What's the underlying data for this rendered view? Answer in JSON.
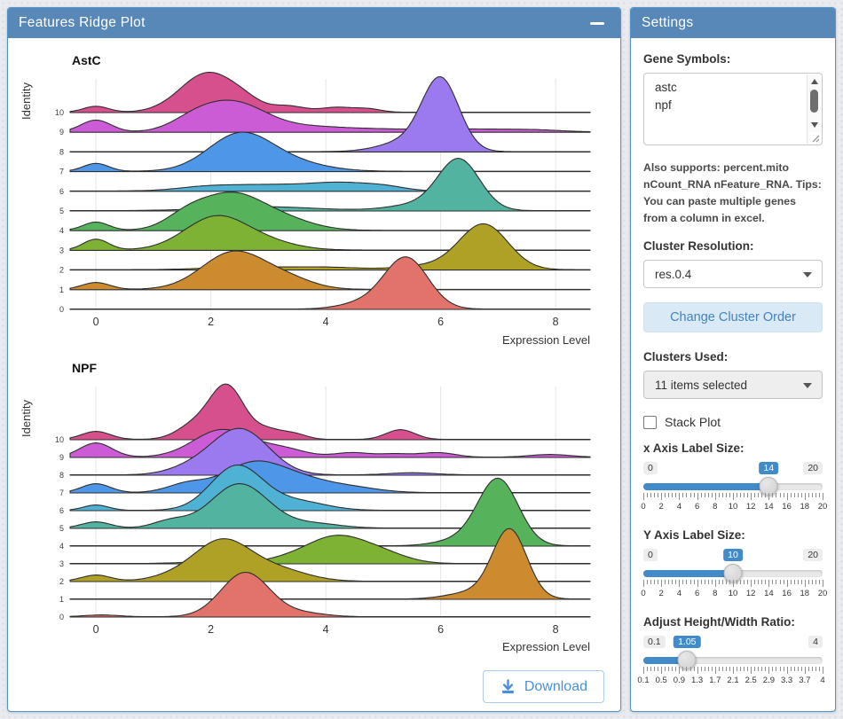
{
  "colors": {
    "header_blue": "#5888B8",
    "panel_border_blue": "#4E96CB",
    "accent_blue": "#428BCA",
    "button_text_blue": "#4A90D9",
    "change_order_bg": "#D9E9F6",
    "download_border": "#A9CDF0"
  },
  "left_panel": {
    "title": "Features Ridge Plot",
    "download_label": "Download"
  },
  "settings": {
    "title": "Settings",
    "gene_symbols_label": "Gene Symbols:",
    "gene_symbols_lines": [
      "astc",
      "npf"
    ],
    "help_text": "Also supports: percent.mito nCount_RNA nFeature_RNA. Tips: You can paste multiple genes from a column in excel.",
    "cluster_resolution_label": "Cluster Resolution:",
    "cluster_resolution_value": "res.0.4",
    "change_cluster_order_label": "Change Cluster Order",
    "clusters_used_label": "Clusters Used:",
    "clusters_used_value": "11 items selected",
    "stack_plot_label": "Stack Plot",
    "stack_plot_checked": false,
    "sliders": [
      {
        "label": "x Axis Label Size:",
        "min": "0",
        "max": "20",
        "value": "14",
        "fraction": 0.7,
        "ticks": [
          "0",
          "2",
          "4",
          "6",
          "8",
          "10",
          "12",
          "14",
          "16",
          "18",
          "20"
        ]
      },
      {
        "label": "Y Axis Label Size:",
        "min": "0",
        "max": "20",
        "value": "10",
        "fraction": 0.5,
        "ticks": [
          "0",
          "2",
          "4",
          "6",
          "8",
          "10",
          "12",
          "14",
          "16",
          "18",
          "20"
        ]
      },
      {
        "label": "Adjust Height/Width Ratio:",
        "min": "0.1",
        "max": "4",
        "value": "1.05",
        "fraction": 0.244,
        "ticks": [
          "0.1",
          "0.5",
          "0.9",
          "1.3",
          "1.7",
          "2.1",
          "2.5",
          "2.9",
          "3.3",
          "3.7",
          "4"
        ]
      }
    ]
  },
  "chart_data": [
    {
      "type": "ridgeline",
      "title": "AstC",
      "xlabel": "Expression Level",
      "ylabel": "Identity",
      "x_range": [
        -0.45,
        8.6
      ],
      "x_ticks": [
        0,
        2,
        4,
        6,
        8
      ],
      "rows": [
        {
          "identity": 10,
          "color": "#D6508E",
          "peaks": [
            {
              "x": 0,
              "h": 0.3,
              "w": 0.22
            },
            {
              "x": 1.95,
              "h": 2.0,
              "w": 0.48
            },
            {
              "x": 2.6,
              "h": 0.3,
              "w": 0.3
            },
            {
              "x": 3.35,
              "h": 0.3,
              "w": 0.28
            },
            {
              "x": 4.2,
              "h": 0.25,
              "w": 0.3
            },
            {
              "x": 4.75,
              "h": 0.15,
              "w": 0.22
            }
          ]
        },
        {
          "identity": 9,
          "color": "#CC5BD6",
          "peaks": [
            {
              "x": 0,
              "h": 0.6,
              "w": 0.26
            },
            {
              "x": 1.7,
              "h": 0.5,
              "w": 0.4
            },
            {
              "x": 2.4,
              "h": 1.45,
              "w": 0.55
            },
            {
              "x": 3.6,
              "h": 0.2,
              "w": 0.6
            },
            {
              "x": 4.8,
              "h": 0.15,
              "w": 0.9
            },
            {
              "x": 6.5,
              "h": 0.12,
              "w": 0.6
            },
            {
              "x": 7.6,
              "h": 0.1,
              "w": 0.5
            }
          ]
        },
        {
          "identity": 8,
          "color": "#9B79EE",
          "peaks": [
            {
              "x": 6.0,
              "h": 3.6,
              "w": 0.32
            },
            {
              "x": 5.4,
              "h": 0.5,
              "w": 0.45
            }
          ]
        },
        {
          "identity": 7,
          "color": "#4E97E8",
          "peaks": [
            {
              "x": 0,
              "h": 0.4,
              "w": 0.22
            },
            {
              "x": 2.5,
              "h": 1.85,
              "w": 0.55
            },
            {
              "x": 3.4,
              "h": 0.4,
              "w": 0.6
            }
          ]
        },
        {
          "identity": 6,
          "color": "#4FB1D4",
          "peaks": [
            {
              "x": 1.9,
              "h": 0.18,
              "w": 0.5
            },
            {
              "x": 3.0,
              "h": 0.3,
              "w": 0.7
            },
            {
              "x": 4.3,
              "h": 0.38,
              "w": 0.55
            },
            {
              "x": 5.05,
              "h": 0.15,
              "w": 0.35
            }
          ]
        },
        {
          "identity": 5,
          "color": "#52B3A1",
          "peaks": [
            {
              "x": 6.32,
              "h": 2.55,
              "w": 0.36
            },
            {
              "x": 5.6,
              "h": 0.3,
              "w": 0.5
            },
            {
              "x": 2.9,
              "h": 0.2,
              "w": 0.9
            }
          ]
        },
        {
          "identity": 4,
          "color": "#56B35C",
          "peaks": [
            {
              "x": 0,
              "h": 0.42,
              "w": 0.22
            },
            {
              "x": 1.55,
              "h": 0.5,
              "w": 0.35
            },
            {
              "x": 2.35,
              "h": 1.85,
              "w": 0.58
            },
            {
              "x": 3.35,
              "h": 0.4,
              "w": 0.5
            }
          ]
        },
        {
          "identity": 3,
          "color": "#7EB234",
          "peaks": [
            {
              "x": 0,
              "h": 0.55,
              "w": 0.22
            },
            {
              "x": 2.1,
              "h": 1.7,
              "w": 0.55
            },
            {
              "x": 3.05,
              "h": 0.3,
              "w": 0.5
            }
          ]
        },
        {
          "identity": 2,
          "color": "#AFA125",
          "peaks": [
            {
              "x": 6.75,
              "h": 2.3,
              "w": 0.42
            },
            {
              "x": 5.8,
              "h": 0.2,
              "w": 0.5
            },
            {
              "x": 2.6,
              "h": 0.13,
              "w": 0.7
            },
            {
              "x": 4.0,
              "h": 0.12,
              "w": 0.6
            }
          ]
        },
        {
          "identity": 1,
          "color": "#CC8B2F",
          "peaks": [
            {
              "x": 0,
              "h": 0.35,
              "w": 0.24
            },
            {
              "x": 2.4,
              "h": 1.9,
              "w": 0.55
            },
            {
              "x": 3.35,
              "h": 0.45,
              "w": 0.45
            }
          ]
        },
        {
          "identity": 0,
          "color": "#E2736B",
          "peaks": [
            {
              "x": 5.4,
              "h": 2.6,
              "w": 0.38
            },
            {
              "x": 4.65,
              "h": 0.3,
              "w": 0.4
            }
          ]
        }
      ]
    },
    {
      "type": "ridgeline",
      "title": "NPF",
      "xlabel": "Expression Level",
      "ylabel": "Identity",
      "x_range": [
        -0.45,
        8.6
      ],
      "x_ticks": [
        0,
        2,
        4,
        6,
        8
      ],
      "rows": [
        {
          "identity": 10,
          "color": "#D6508E",
          "peaks": [
            {
              "x": 0,
              "h": 0.45,
              "w": 0.25
            },
            {
              "x": 1.7,
              "h": 0.75,
              "w": 0.3
            },
            {
              "x": 2.28,
              "h": 3.0,
              "w": 0.3
            },
            {
              "x": 3.0,
              "h": 0.5,
              "w": 0.24
            },
            {
              "x": 3.45,
              "h": 0.3,
              "w": 0.22
            },
            {
              "x": 5.3,
              "h": 0.55,
              "w": 0.25
            }
          ]
        },
        {
          "identity": 9,
          "color": "#CC5BD6",
          "peaks": [
            {
              "x": 0,
              "h": 0.8,
              "w": 0.28
            },
            {
              "x": 2.2,
              "h": 1.55,
              "w": 0.5
            },
            {
              "x": 3.25,
              "h": 0.45,
              "w": 0.4
            },
            {
              "x": 4.45,
              "h": 0.25,
              "w": 0.3
            },
            {
              "x": 5.2,
              "h": 0.18,
              "w": 0.3
            },
            {
              "x": 5.95,
              "h": 0.25,
              "w": 0.3
            },
            {
              "x": 7.9,
              "h": 0.15,
              "w": 0.35
            }
          ]
        },
        {
          "identity": 8,
          "color": "#9B79EE",
          "peaks": [
            {
              "x": 2.5,
              "h": 2.6,
              "w": 0.5
            },
            {
              "x": 1.6,
              "h": 0.3,
              "w": 0.4
            },
            {
              "x": 5.5,
              "h": 0.12,
              "w": 0.4
            }
          ]
        },
        {
          "identity": 7,
          "color": "#4E97E8",
          "peaks": [
            {
              "x": 0,
              "h": 0.5,
              "w": 0.25
            },
            {
              "x": 1.6,
              "h": 0.5,
              "w": 0.35
            },
            {
              "x": 2.7,
              "h": 1.55,
              "w": 0.5
            },
            {
              "x": 3.5,
              "h": 0.7,
              "w": 0.5
            },
            {
              "x": 4.4,
              "h": 0.3,
              "w": 0.5
            }
          ]
        },
        {
          "identity": 6,
          "color": "#4FB1D4",
          "peaks": [
            {
              "x": 0,
              "h": 0.3,
              "w": 0.22
            },
            {
              "x": 2.45,
              "h": 2.5,
              "w": 0.45
            },
            {
              "x": 3.5,
              "h": 0.5,
              "w": 0.5
            }
          ]
        },
        {
          "identity": 5,
          "color": "#52B3A1",
          "peaks": [
            {
              "x": 0,
              "h": 0.35,
              "w": 0.25
            },
            {
              "x": 1.3,
              "h": 0.4,
              "w": 0.3
            },
            {
              "x": 2.5,
              "h": 2.5,
              "w": 0.5
            },
            {
              "x": 3.8,
              "h": 0.25,
              "w": 0.45
            }
          ]
        },
        {
          "identity": 4,
          "color": "#56B35C",
          "peaks": [
            {
              "x": 7.0,
              "h": 3.75,
              "w": 0.35
            },
            {
              "x": 6.3,
              "h": 0.3,
              "w": 0.4
            }
          ]
        },
        {
          "identity": 3,
          "color": "#7EB234",
          "peaks": [
            {
              "x": 4.15,
              "h": 1.45,
              "w": 0.5
            },
            {
              "x": 4.95,
              "h": 0.55,
              "w": 0.45
            },
            {
              "x": 3.3,
              "h": 0.2,
              "w": 0.4
            },
            {
              "x": 2.0,
              "h": 0.1,
              "w": 0.5
            }
          ]
        },
        {
          "identity": 2,
          "color": "#AFA125",
          "peaks": [
            {
              "x": 0,
              "h": 0.35,
              "w": 0.25
            },
            {
              "x": 2.2,
              "h": 2.3,
              "w": 0.5
            },
            {
              "x": 3.2,
              "h": 0.6,
              "w": 0.5
            },
            {
              "x": 1.3,
              "h": 0.2,
              "w": 0.4
            }
          ]
        },
        {
          "identity": 1,
          "color": "#CC8B2F",
          "peaks": [
            {
              "x": 7.2,
              "h": 3.9,
              "w": 0.3
            },
            {
              "x": 6.5,
              "h": 0.35,
              "w": 0.4
            }
          ]
        },
        {
          "identity": 0,
          "color": "#E2736B",
          "peaks": [
            {
              "x": 2.6,
              "h": 2.5,
              "w": 0.42
            },
            {
              "x": 3.6,
              "h": 0.2,
              "w": 0.4
            },
            {
              "x": 0.1,
              "h": 0.1,
              "w": 0.3
            }
          ]
        }
      ]
    }
  ]
}
